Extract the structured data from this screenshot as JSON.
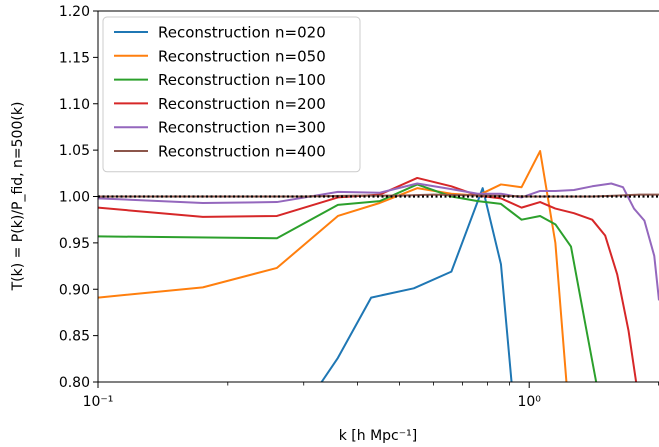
{
  "chart_data": {
    "type": "line",
    "title": "",
    "xlabel": "k [h Mpc⁻¹]",
    "ylabel": "T(k) = P(k)/P_fid, n=500(k)",
    "xscale": "log",
    "xlim": [
      0.1,
      2.0
    ],
    "ylim": [
      0.8,
      1.2
    ],
    "grid": false,
    "legend_position": "top-left",
    "y_ticks": [
      0.8,
      0.85,
      0.9,
      0.95,
      1.0,
      1.05,
      1.1,
      1.15,
      1.2
    ],
    "y_tick_labels": [
      "0.80",
      "0.85",
      "0.90",
      "0.95",
      "1.00",
      "1.05",
      "1.10",
      "1.15",
      "1.20"
    ],
    "x_ticks": [
      0.1,
      1.0
    ],
    "x_tick_labels": [
      "10⁻¹",
      "10⁰"
    ],
    "reference_line": {
      "y": 1.0,
      "color": "#000000",
      "style": "dotted"
    },
    "series": [
      {
        "name": "Reconstruction n=020",
        "color": "#1f77b4",
        "x": [
          0.33,
          0.36,
          0.43,
          0.54,
          0.66,
          0.78,
          0.86,
          0.91
        ],
        "y": [
          0.8,
          0.826,
          0.891,
          0.901,
          0.919,
          1.009,
          0.927,
          0.8
        ]
      },
      {
        "name": "Reconstruction n=050",
        "color": "#ff7f0e",
        "x": [
          0.1,
          0.175,
          0.26,
          0.36,
          0.45,
          0.55,
          0.66,
          0.76,
          0.86,
          0.96,
          1.06,
          1.15,
          1.22
        ],
        "y": [
          0.891,
          0.902,
          0.923,
          0.979,
          0.993,
          1.009,
          1.003,
          1.001,
          1.013,
          1.01,
          1.049,
          0.95,
          0.8
        ]
      },
      {
        "name": "Reconstruction n=100",
        "color": "#2ca02c",
        "x": [
          0.1,
          0.26,
          0.36,
          0.45,
          0.55,
          0.66,
          0.76,
          0.86,
          0.96,
          1.06,
          1.15,
          1.25,
          1.35,
          1.43
        ],
        "y": [
          0.957,
          0.955,
          0.991,
          0.995,
          1.013,
          1.0,
          0.995,
          0.992,
          0.975,
          0.979,
          0.97,
          0.946,
          0.862,
          0.8
        ]
      },
      {
        "name": "Reconstruction n=200",
        "color": "#d62728",
        "x": [
          0.1,
          0.175,
          0.26,
          0.36,
          0.45,
          0.55,
          0.66,
          0.76,
          0.86,
          0.96,
          1.06,
          1.15,
          1.27,
          1.4,
          1.5,
          1.6,
          1.7,
          1.77
        ],
        "y": [
          0.988,
          0.978,
          0.979,
          0.999,
          1.002,
          1.02,
          1.011,
          1.001,
          0.998,
          0.988,
          0.994,
          0.987,
          0.982,
          0.975,
          0.958,
          0.916,
          0.855,
          0.8
        ]
      },
      {
        "name": "Reconstruction n=300",
        "color": "#9467bd",
        "x": [
          0.1,
          0.175,
          0.26,
          0.36,
          0.45,
          0.55,
          0.66,
          0.76,
          0.86,
          0.96,
          1.06,
          1.15,
          1.27,
          1.4,
          1.55,
          1.65,
          1.75,
          1.85,
          1.95,
          2.0
        ],
        "y": [
          0.998,
          0.993,
          0.994,
          1.005,
          1.004,
          1.014,
          1.008,
          1.003,
          1.003,
          0.999,
          1.006,
          1.006,
          1.007,
          1.011,
          1.014,
          1.01,
          0.987,
          0.974,
          0.936,
          0.888
        ]
      },
      {
        "name": "Reconstruction n=400",
        "color": "#8c564b",
        "x": [
          0.1,
          0.2,
          0.3,
          0.4,
          0.5,
          0.6,
          0.8,
          1.0,
          1.2,
          1.4,
          1.6,
          1.8,
          2.0
        ],
        "y": [
          1.0,
          1.0,
          1.0,
          1.001,
          1.001,
          1.002,
          1.001,
          1.0,
          1.0,
          1.0,
          1.001,
          1.002,
          1.002
        ]
      }
    ]
  }
}
